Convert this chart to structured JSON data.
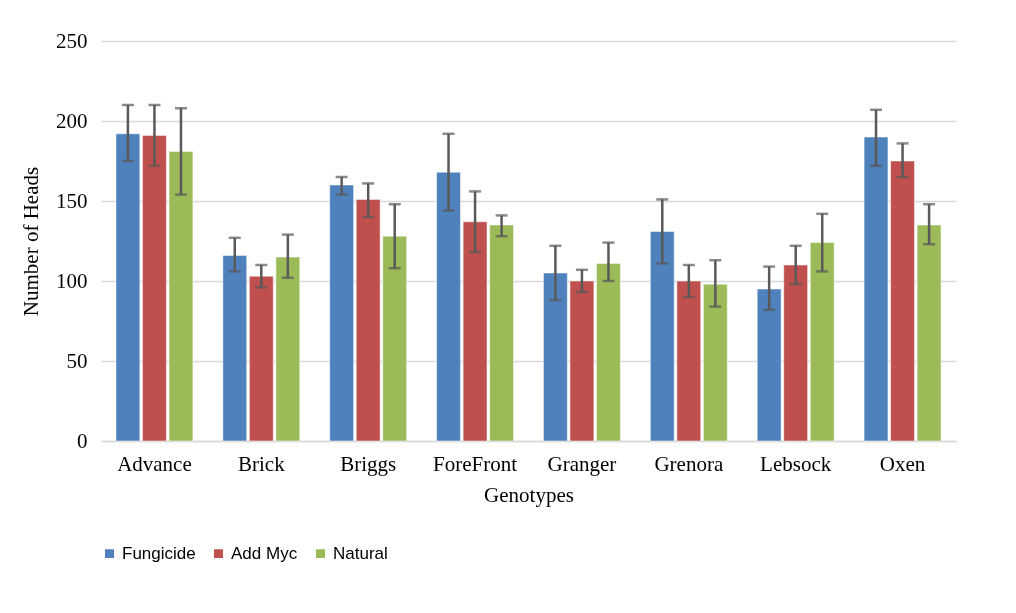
{
  "chart_data": {
    "type": "bar",
    "xlabel": "Genotypes",
    "ylabel": "Number of Heads",
    "categories": [
      "Advance",
      "Brick",
      "Briggs",
      "ForeFront",
      "Granger",
      "Grenora",
      "Lebsock",
      "Oxen"
    ],
    "series": [
      {
        "name": "Fungicide",
        "color": "#4f81bd",
        "values": [
          192,
          116,
          160,
          168,
          105,
          131,
          95,
          190
        ],
        "errors": [
          [
            175,
            210
          ],
          [
            106,
            127
          ],
          [
            154,
            165
          ],
          [
            144,
            192
          ],
          [
            88,
            122
          ],
          [
            111,
            151
          ],
          [
            82,
            109
          ],
          [
            172,
            207
          ]
        ]
      },
      {
        "name": "Add Myc",
        "color": "#c0504d",
        "values": [
          191,
          103,
          151,
          137,
          100,
          100,
          110,
          175
        ],
        "errors": [
          [
            172,
            210
          ],
          [
            96,
            110
          ],
          [
            140,
            161
          ],
          [
            118,
            156
          ],
          [
            93,
            107
          ],
          [
            90,
            110
          ],
          [
            98,
            122
          ],
          [
            165,
            186
          ]
        ]
      },
      {
        "name": "Natural",
        "color": "#9bbb59",
        "values": [
          181,
          115,
          128,
          135,
          111,
          98,
          124,
          135
        ],
        "errors": [
          [
            154,
            208
          ],
          [
            102,
            129
          ],
          [
            108,
            148
          ],
          [
            128,
            141
          ],
          [
            100,
            124
          ],
          [
            84,
            113
          ],
          [
            106,
            142
          ],
          [
            123,
            148
          ]
        ]
      }
    ],
    "ylim": [
      0,
      250
    ],
    "yticks": [
      0,
      50,
      100,
      150,
      200,
      250
    ],
    "grid": "y",
    "legend": "bottom"
  }
}
